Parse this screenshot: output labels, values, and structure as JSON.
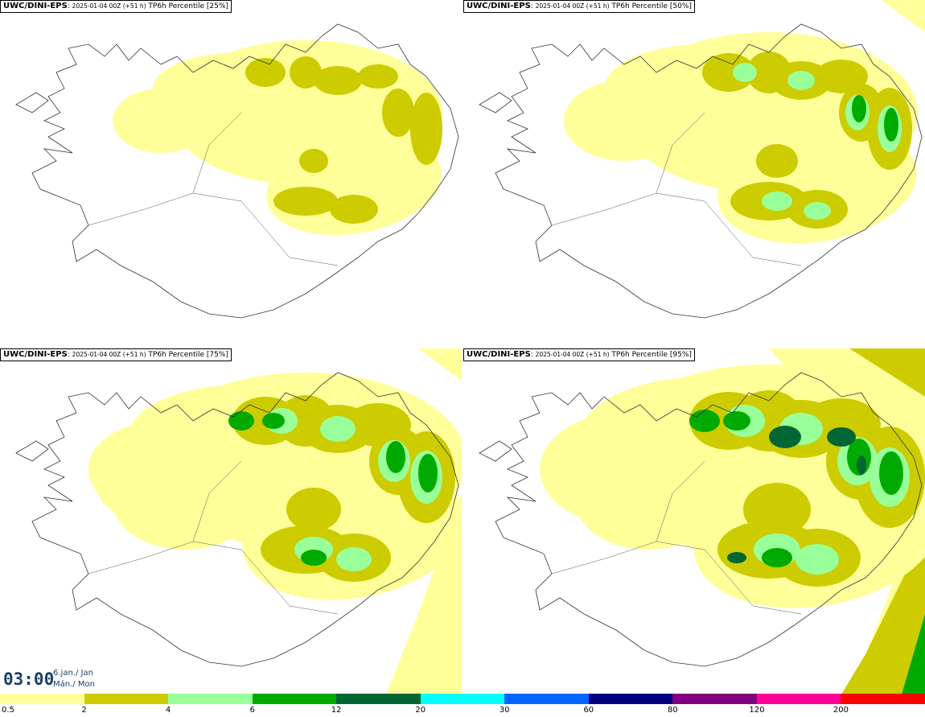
{
  "panels": [
    {
      "model": "UWC/DINI-EPS",
      "run": "2025-01-04 00Z (+51 h)",
      "field": "TP6h Percentile [25%]",
      "level": 0
    },
    {
      "model": "UWC/DINI-EPS",
      "run": "2025-01-04 00Z (+51 h)",
      "field": "TP6h Percentile [50%]",
      "level": 1
    },
    {
      "model": "UWC/DINI-EPS",
      "run": "2025-01-04 00Z (+51 h)",
      "field": "TP6h Percentile [75%]",
      "level": 2
    },
    {
      "model": "UWC/DINI-EPS",
      "run": "2025-01-04 00Z (+51 h)",
      "field": "TP6h Percentile [95%]",
      "level": 3
    }
  ],
  "timebox": {
    "time": "03:00",
    "date_line1": "6.jan./ Jan",
    "date_line2": "Mán./ Mon"
  },
  "legend": {
    "colors": [
      "#ffff99",
      "#cccc00",
      "#99ff99",
      "#00aa00",
      "#006633",
      "#00ffff",
      "#0066ff",
      "#000080",
      "#800080",
      "#ff0099",
      "#ff0000"
    ],
    "labels": [
      "0.5",
      "2",
      "4",
      "6",
      "12",
      "20",
      "30",
      "60",
      "80",
      "120",
      "200"
    ]
  }
}
